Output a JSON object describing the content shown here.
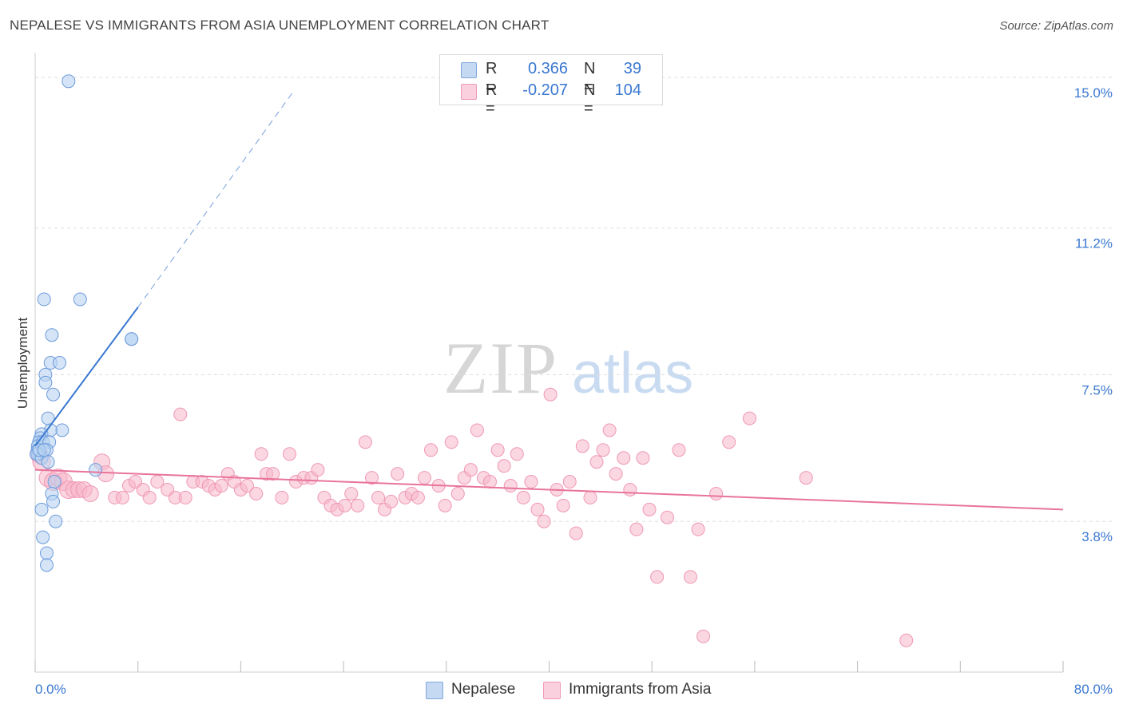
{
  "title": "NEPALESE VS IMMIGRANTS FROM ASIA UNEMPLOYMENT CORRELATION CHART",
  "source": "Source: ZipAtlas.com",
  "watermark": {
    "zip": "ZIP",
    "atlas": "atlas"
  },
  "legend": {
    "rows": [
      {
        "r_label": "R =",
        "r_value": "0.366",
        "n_label": "N =",
        "n_value": "39",
        "color": "#a8c8f0"
      },
      {
        "r_label": "R =",
        "r_value": "-0.207",
        "n_label": "N =",
        "n_value": "104",
        "color": "#f7b6cb"
      }
    ]
  },
  "bottom_legend": [
    {
      "label": "Nepalese",
      "color": "#a8c8f0"
    },
    {
      "label": "Immigrants from Asia",
      "color": "#f7b6cb"
    }
  ],
  "colors": {
    "blue": "#3a78d0",
    "blue_fill": "#a8c8f0",
    "pink": "#e8749a",
    "pink_fill": "#f7b6cb",
    "grid": "#dddddd",
    "tick_text": "#3a78d0"
  },
  "chart_data": {
    "type": "scatter",
    "title": "NEPALESE VS IMMIGRANTS FROM ASIA UNEMPLOYMENT CORRELATION CHART",
    "xlabel": "",
    "ylabel": "Unemployment",
    "xlim": [
      0,
      80
    ],
    "ylim": [
      0,
      15.5
    ],
    "x_tick_labels": [
      "0.0%",
      "80.0%"
    ],
    "y_ticks": [
      3.8,
      7.5,
      11.2,
      15.0
    ],
    "y_tick_labels": [
      "3.8%",
      "7.5%",
      "11.2%",
      "15.0%"
    ],
    "grid": "horizontal dashed",
    "legend_position": "top-center",
    "series": [
      {
        "name": "Nepalese",
        "color": "#a8c8f0",
        "points": [
          [
            2.6,
            14.9
          ],
          [
            0.7,
            9.4
          ],
          [
            3.5,
            9.4
          ],
          [
            1.3,
            8.5
          ],
          [
            7.5,
            8.4
          ],
          [
            7.5,
            8.4
          ],
          [
            1.2,
            7.8
          ],
          [
            1.9,
            7.8
          ],
          [
            0.8,
            7.5
          ],
          [
            0.8,
            7.3
          ],
          [
            1.4,
            7.0
          ],
          [
            1.0,
            6.4
          ],
          [
            2.1,
            6.1
          ],
          [
            1.2,
            6.1
          ],
          [
            0.5,
            6.0
          ],
          [
            0.4,
            5.9
          ],
          [
            0.3,
            5.8
          ],
          [
            0.2,
            5.7
          ],
          [
            0.2,
            5.6
          ],
          [
            0.6,
            5.8
          ],
          [
            1.1,
            5.8
          ],
          [
            0.9,
            5.6
          ],
          [
            0.4,
            5.5
          ],
          [
            0.3,
            5.5
          ],
          [
            0.2,
            5.5
          ],
          [
            0.1,
            5.5
          ],
          [
            0.5,
            5.4
          ],
          [
            1.0,
            5.3
          ],
          [
            4.7,
            5.1
          ],
          [
            1.5,
            4.8
          ],
          [
            1.3,
            4.5
          ],
          [
            1.4,
            4.3
          ],
          [
            0.5,
            4.1
          ],
          [
            1.6,
            3.8
          ],
          [
            0.6,
            3.4
          ],
          [
            0.9,
            3.0
          ],
          [
            0.9,
            2.7
          ],
          [
            0.3,
            5.6
          ],
          [
            0.7,
            5.6
          ]
        ]
      },
      {
        "name": "Immigrants from Asia",
        "color": "#f7b6cb",
        "points": [
          [
            0.3,
            5.5
          ],
          [
            0.5,
            5.3
          ],
          [
            1.0,
            4.9
          ],
          [
            1.4,
            4.8
          ],
          [
            1.8,
            4.9
          ],
          [
            2.2,
            4.8
          ],
          [
            2.6,
            4.6
          ],
          [
            3.0,
            4.6
          ],
          [
            3.4,
            4.6
          ],
          [
            3.8,
            4.6
          ],
          [
            4.3,
            4.5
          ],
          [
            5.2,
            5.3
          ],
          [
            5.5,
            5.0
          ],
          [
            6.2,
            4.4
          ],
          [
            6.8,
            4.4
          ],
          [
            7.3,
            4.7
          ],
          [
            7.8,
            4.8
          ],
          [
            8.4,
            4.6
          ],
          [
            8.9,
            4.4
          ],
          [
            9.5,
            4.8
          ],
          [
            10.3,
            4.6
          ],
          [
            10.9,
            4.4
          ],
          [
            11.3,
            6.5
          ],
          [
            11.7,
            4.4
          ],
          [
            12.3,
            4.8
          ],
          [
            13.0,
            4.8
          ],
          [
            13.5,
            4.7
          ],
          [
            14.0,
            4.6
          ],
          [
            14.5,
            4.7
          ],
          [
            15.0,
            5.0
          ],
          [
            15.5,
            4.8
          ],
          [
            16.0,
            4.6
          ],
          [
            16.5,
            4.7
          ],
          [
            17.2,
            4.5
          ],
          [
            17.6,
            5.5
          ],
          [
            18.0,
            5.0
          ],
          [
            18.5,
            5.0
          ],
          [
            19.2,
            4.4
          ],
          [
            19.8,
            5.5
          ],
          [
            20.3,
            4.8
          ],
          [
            20.9,
            4.9
          ],
          [
            21.5,
            4.9
          ],
          [
            22.0,
            5.1
          ],
          [
            22.5,
            4.4
          ],
          [
            23.0,
            4.2
          ],
          [
            23.5,
            4.1
          ],
          [
            24.1,
            4.2
          ],
          [
            24.6,
            4.5
          ],
          [
            25.1,
            4.2
          ],
          [
            25.7,
            5.8
          ],
          [
            26.2,
            4.9
          ],
          [
            26.7,
            4.4
          ],
          [
            27.2,
            4.1
          ],
          [
            27.7,
            4.3
          ],
          [
            28.2,
            5.0
          ],
          [
            28.8,
            4.4
          ],
          [
            29.3,
            4.5
          ],
          [
            29.8,
            4.4
          ],
          [
            30.3,
            4.9
          ],
          [
            30.8,
            5.6
          ],
          [
            31.4,
            4.7
          ],
          [
            31.9,
            4.2
          ],
          [
            32.4,
            5.8
          ],
          [
            32.9,
            4.5
          ],
          [
            33.4,
            4.9
          ],
          [
            33.9,
            5.1
          ],
          [
            34.4,
            6.1
          ],
          [
            34.9,
            4.9
          ],
          [
            35.4,
            4.8
          ],
          [
            36.0,
            5.6
          ],
          [
            36.5,
            5.2
          ],
          [
            37.0,
            4.7
          ],
          [
            37.5,
            5.5
          ],
          [
            38.0,
            4.4
          ],
          [
            38.6,
            4.8
          ],
          [
            39.1,
            4.1
          ],
          [
            39.6,
            3.8
          ],
          [
            40.1,
            7.0
          ],
          [
            40.6,
            4.6
          ],
          [
            41.1,
            4.2
          ],
          [
            41.6,
            4.8
          ],
          [
            42.1,
            3.5
          ],
          [
            42.6,
            5.7
          ],
          [
            43.2,
            4.4
          ],
          [
            43.7,
            5.3
          ],
          [
            44.2,
            5.6
          ],
          [
            44.7,
            6.1
          ],
          [
            45.2,
            5.0
          ],
          [
            45.8,
            5.4
          ],
          [
            46.3,
            4.6
          ],
          [
            46.8,
            3.6
          ],
          [
            47.3,
            5.4
          ],
          [
            47.8,
            4.1
          ],
          [
            48.4,
            2.4
          ],
          [
            49.2,
            3.9
          ],
          [
            50.1,
            5.6
          ],
          [
            51.0,
            2.4
          ],
          [
            51.6,
            3.6
          ],
          [
            52.0,
            0.9
          ],
          [
            53.0,
            4.5
          ],
          [
            54.0,
            5.8
          ],
          [
            55.6,
            6.4
          ],
          [
            67.8,
            0.8
          ],
          [
            60.0,
            4.9
          ]
        ]
      }
    ],
    "trend_lines": [
      {
        "series": "Nepalese",
        "color": "#3a78d0",
        "solid_from": [
          0,
          5.7
        ],
        "solid_to": [
          8,
          9.2
        ],
        "dashed_to": [
          20,
          14.6
        ]
      },
      {
        "series": "Immigrants from Asia",
        "color": "#e8749a",
        "from": [
          0,
          5.1
        ],
        "to": [
          80,
          4.1
        ]
      }
    ]
  }
}
